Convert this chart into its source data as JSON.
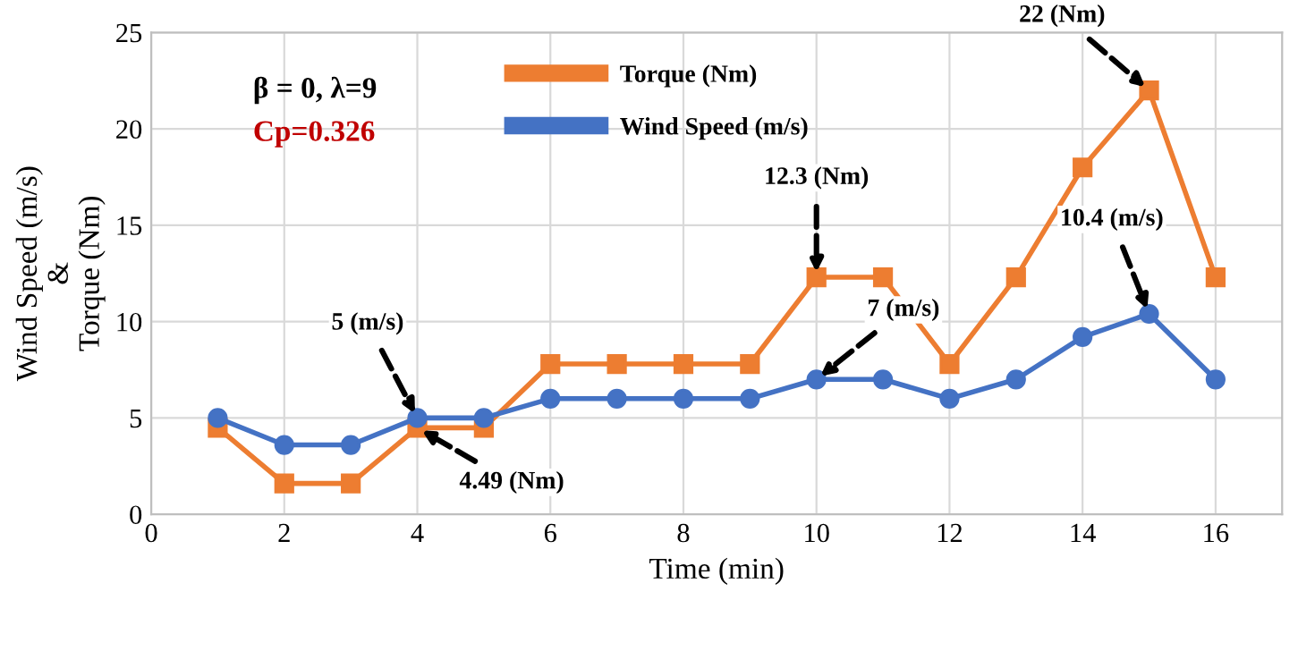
{
  "chart_data": {
    "type": "line",
    "xlabel": "Time (min)",
    "ylabel": "Wind Speed (m/s)\n&\nTorque (Nm)",
    "x": [
      1,
      2,
      3,
      4,
      5,
      6,
      7,
      8,
      9,
      10,
      11,
      12,
      13,
      14,
      15,
      16
    ],
    "series": [
      {
        "name": "Torque (Nm)",
        "color": "#ed7d31",
        "marker": "square",
        "values": [
          4.49,
          1.6,
          1.6,
          4.49,
          4.49,
          7.8,
          7.8,
          7.8,
          7.8,
          12.3,
          12.3,
          7.8,
          12.3,
          18,
          22,
          12.3
        ]
      },
      {
        "name": "Wind Speed (m/s)",
        "color": "#4472c4",
        "marker": "circle",
        "values": [
          5,
          3.6,
          3.6,
          5,
          5,
          6,
          6,
          6,
          6,
          7,
          7,
          6,
          7,
          9.2,
          10.4,
          7
        ]
      }
    ],
    "xlim": [
      0,
      17
    ],
    "xticks": [
      0,
      2,
      4,
      6,
      8,
      10,
      12,
      14,
      16
    ],
    "ylim": [
      0,
      25
    ],
    "yticks": [
      0,
      5,
      10,
      15,
      20,
      25
    ],
    "grid": true,
    "legend": "top",
    "line_style": "solid",
    "annotations": [
      "β = 0, λ=9",
      "Cp=0.326",
      {
        "text": "5 (m/s)",
        "x": 4,
        "y": 5
      },
      {
        "text": "4.49 (Nm)",
        "x": 4,
        "y": 4.49
      },
      {
        "text": "12.3 (Nm)",
        "x": 10,
        "y": 12.3
      },
      {
        "text": "7 (m/s)",
        "x": 10,
        "y": 7
      },
      {
        "text": "22 (Nm)",
        "x": 15,
        "y": 22
      },
      {
        "text": "10.4 (m/s)",
        "x": 15,
        "y": 10.4
      }
    ]
  }
}
